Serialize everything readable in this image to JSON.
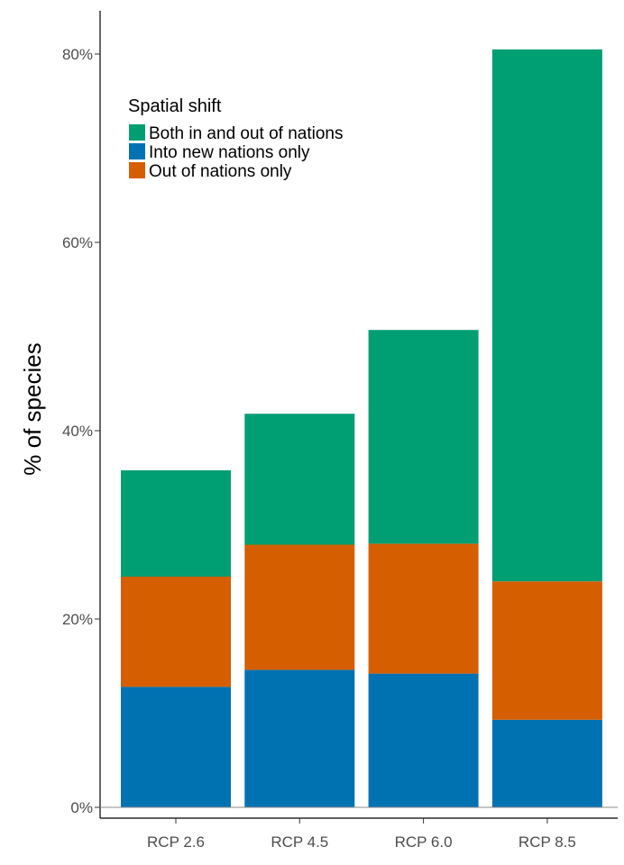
{
  "chart_data": {
    "type": "bar",
    "stacked": true,
    "ylabel": "% of species",
    "xlabel": "",
    "ylim": [
      0,
      0.8
    ],
    "y_ticks": [
      0,
      0.2,
      0.4,
      0.6,
      0.8
    ],
    "y_tick_labels": [
      "0%",
      "20%",
      "40%",
      "60%",
      "80%"
    ],
    "categories": [
      "RCP 2.6",
      "RCP 4.5",
      "RCP 6.0",
      "RCP 8.5"
    ],
    "series": [
      {
        "name": "Into new nations only",
        "color": "#0072b2",
        "values": [
          0.128,
          0.146,
          0.142,
          0.093
        ]
      },
      {
        "name": "Out of nations only",
        "color": "#d55e00",
        "values": [
          0.117,
          0.133,
          0.138,
          0.147
        ]
      },
      {
        "name": "Both in and out of nations",
        "color": "#009e73",
        "values": [
          0.113,
          0.139,
          0.227,
          0.565
        ]
      }
    ],
    "legend": {
      "title": "Spatial shift",
      "placement": "top-left",
      "order": [
        "Both in and out of nations",
        "Into new nations only",
        "Out of nations only"
      ]
    },
    "grid": false
  }
}
